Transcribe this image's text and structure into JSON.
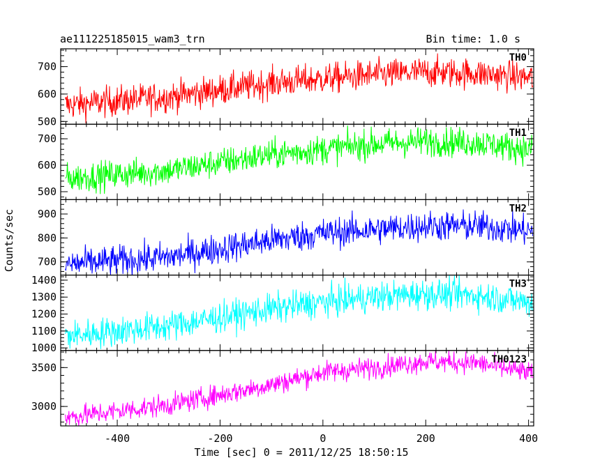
{
  "header": {
    "title_left": "ae111225185015_wam3_trn",
    "title_right": "Bin time: 1.0 s"
  },
  "axes": {
    "xlabel": "Time [sec] 0 = 2011/12/25 18:50:15",
    "ylabel": "Counts/sec"
  },
  "chart_data": {
    "type": "line",
    "x": {
      "range": [
        -510,
        410
      ],
      "ticks": [
        -400,
        -200,
        0,
        200,
        400
      ],
      "bin": 1.0
    },
    "panels": [
      {
        "name": "TH0",
        "color": "#ff0000",
        "ylim": [
          490,
          765
        ],
        "yticks": [
          500,
          600,
          700
        ],
        "ticklabels": [
          "500",
          "600",
          "700"
        ],
        "trend": [
          [
            -500,
            560
          ],
          [
            -300,
            590
          ],
          [
            -100,
            640
          ],
          [
            0,
            655
          ],
          [
            100,
            670
          ],
          [
            200,
            680
          ],
          [
            300,
            675
          ],
          [
            400,
            660
          ]
        ],
        "noise": 28
      },
      {
        "name": "TH1",
        "color": "#00ff00",
        "ylim": [
          470,
          755
        ],
        "yticks": [
          500,
          600,
          700
        ],
        "ticklabels": [
          "500",
          "600",
          "700"
        ],
        "trend": [
          [
            -500,
            550
          ],
          [
            -300,
            580
          ],
          [
            -100,
            640
          ],
          [
            0,
            660
          ],
          [
            100,
            680
          ],
          [
            200,
            690
          ],
          [
            300,
            685
          ],
          [
            400,
            660
          ]
        ],
        "noise": 28
      },
      {
        "name": "TH2",
        "color": "#0000ff",
        "ylim": [
          645,
          960
        ],
        "yticks": [
          700,
          800,
          900
        ],
        "ticklabels": [
          "700",
          "800",
          "900"
        ],
        "trend": [
          [
            -500,
            690
          ],
          [
            -300,
            720
          ],
          [
            -100,
            790
          ],
          [
            0,
            820
          ],
          [
            100,
            835
          ],
          [
            200,
            850
          ],
          [
            300,
            850
          ],
          [
            400,
            830
          ]
        ],
        "noise": 32
      },
      {
        "name": "TH3",
        "color": "#00ffff",
        "ylim": [
          985,
          1430
        ],
        "yticks": [
          1000,
          1100,
          1200,
          1300,
          1400
        ],
        "ticklabels": [
          "1000",
          "1100",
          "1200",
          "1300",
          "1400"
        ],
        "trend": [
          [
            -500,
            1070
          ],
          [
            -300,
            1130
          ],
          [
            -100,
            1230
          ],
          [
            0,
            1270
          ],
          [
            100,
            1300
          ],
          [
            200,
            1320
          ],
          [
            300,
            1310
          ],
          [
            400,
            1270
          ]
        ],
        "noise": 45
      },
      {
        "name": "TH0123",
        "color": "#ff00ff",
        "ylim": [
          2750,
          3720
        ],
        "yticks": [
          3000,
          3500
        ],
        "ticklabels": [
          "3000",
          "3500"
        ],
        "trend": [
          [
            -500,
            2860
          ],
          [
            -300,
            3020
          ],
          [
            -100,
            3280
          ],
          [
            0,
            3440
          ],
          [
            100,
            3500
          ],
          [
            200,
            3580
          ],
          [
            300,
            3560
          ],
          [
            400,
            3430
          ]
        ],
        "noise": 70
      }
    ]
  }
}
